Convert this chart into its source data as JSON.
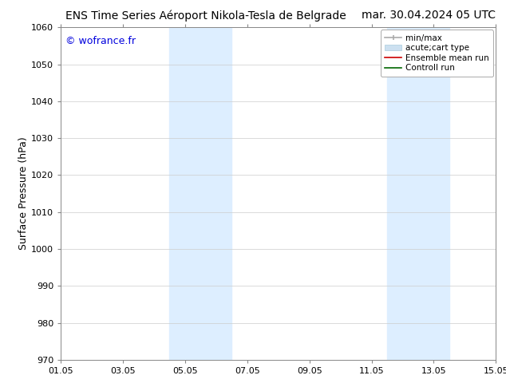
{
  "title_left": "ENS Time Series Aéroport Nikola-Tesla de Belgrade",
  "title_right": "mar. 30.04.2024 05 UTC",
  "ylabel": "Surface Pressure (hPa)",
  "ylim": [
    970,
    1060
  ],
  "yticks": [
    970,
    980,
    990,
    1000,
    1010,
    1020,
    1030,
    1040,
    1050,
    1060
  ],
  "xtick_labels": [
    "01.05",
    "03.05",
    "05.05",
    "07.05",
    "09.05",
    "11.05",
    "13.05",
    "15.05"
  ],
  "xtick_positions": [
    0,
    2,
    4,
    6,
    8,
    10,
    12,
    14
  ],
  "xlim": [
    0,
    14
  ],
  "watermark": "© wofrance.fr",
  "watermark_color": "#0000dd",
  "bg_color": "#ffffff",
  "plot_bg_color": "#ffffff",
  "shaded_regions": [
    {
      "xstart": 3.5,
      "xend": 5.5,
      "color": "#ddeeff"
    },
    {
      "xstart": 10.5,
      "xend": 12.5,
      "color": "#ddeeff"
    }
  ],
  "legend_entries": [
    {
      "label": "min/max",
      "color": "#aaaaaa"
    },
    {
      "label": "acute;cart type",
      "color": "#cce0f0"
    },
    {
      "label": "Ensemble mean run",
      "color": "#cc0000"
    },
    {
      "label": "Controll run",
      "color": "#006600"
    }
  ],
  "title_fontsize": 10,
  "ylabel_fontsize": 9,
  "tick_fontsize": 8,
  "legend_fontsize": 7.5,
  "watermark_fontsize": 9
}
